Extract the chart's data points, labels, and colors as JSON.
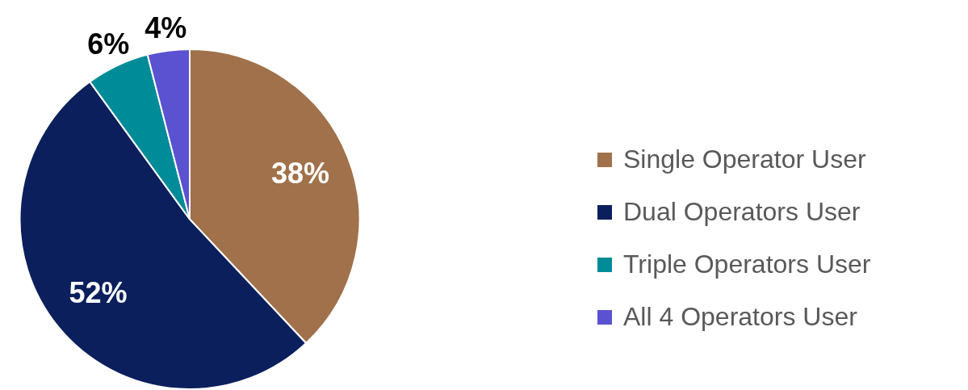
{
  "chart_data": {
    "type": "pie",
    "categories": [
      "Single Operator User",
      "Dual Operators User",
      "Triple Operators User",
      "All 4 Operators User"
    ],
    "values": [
      38,
      52,
      6,
      4
    ],
    "colors": [
      "#a0714a",
      "#0a1f5c",
      "#008b99",
      "#5a52d0"
    ],
    "value_labels": [
      "38%",
      "52%",
      "6%",
      "4%"
    ],
    "legend": "right"
  }
}
